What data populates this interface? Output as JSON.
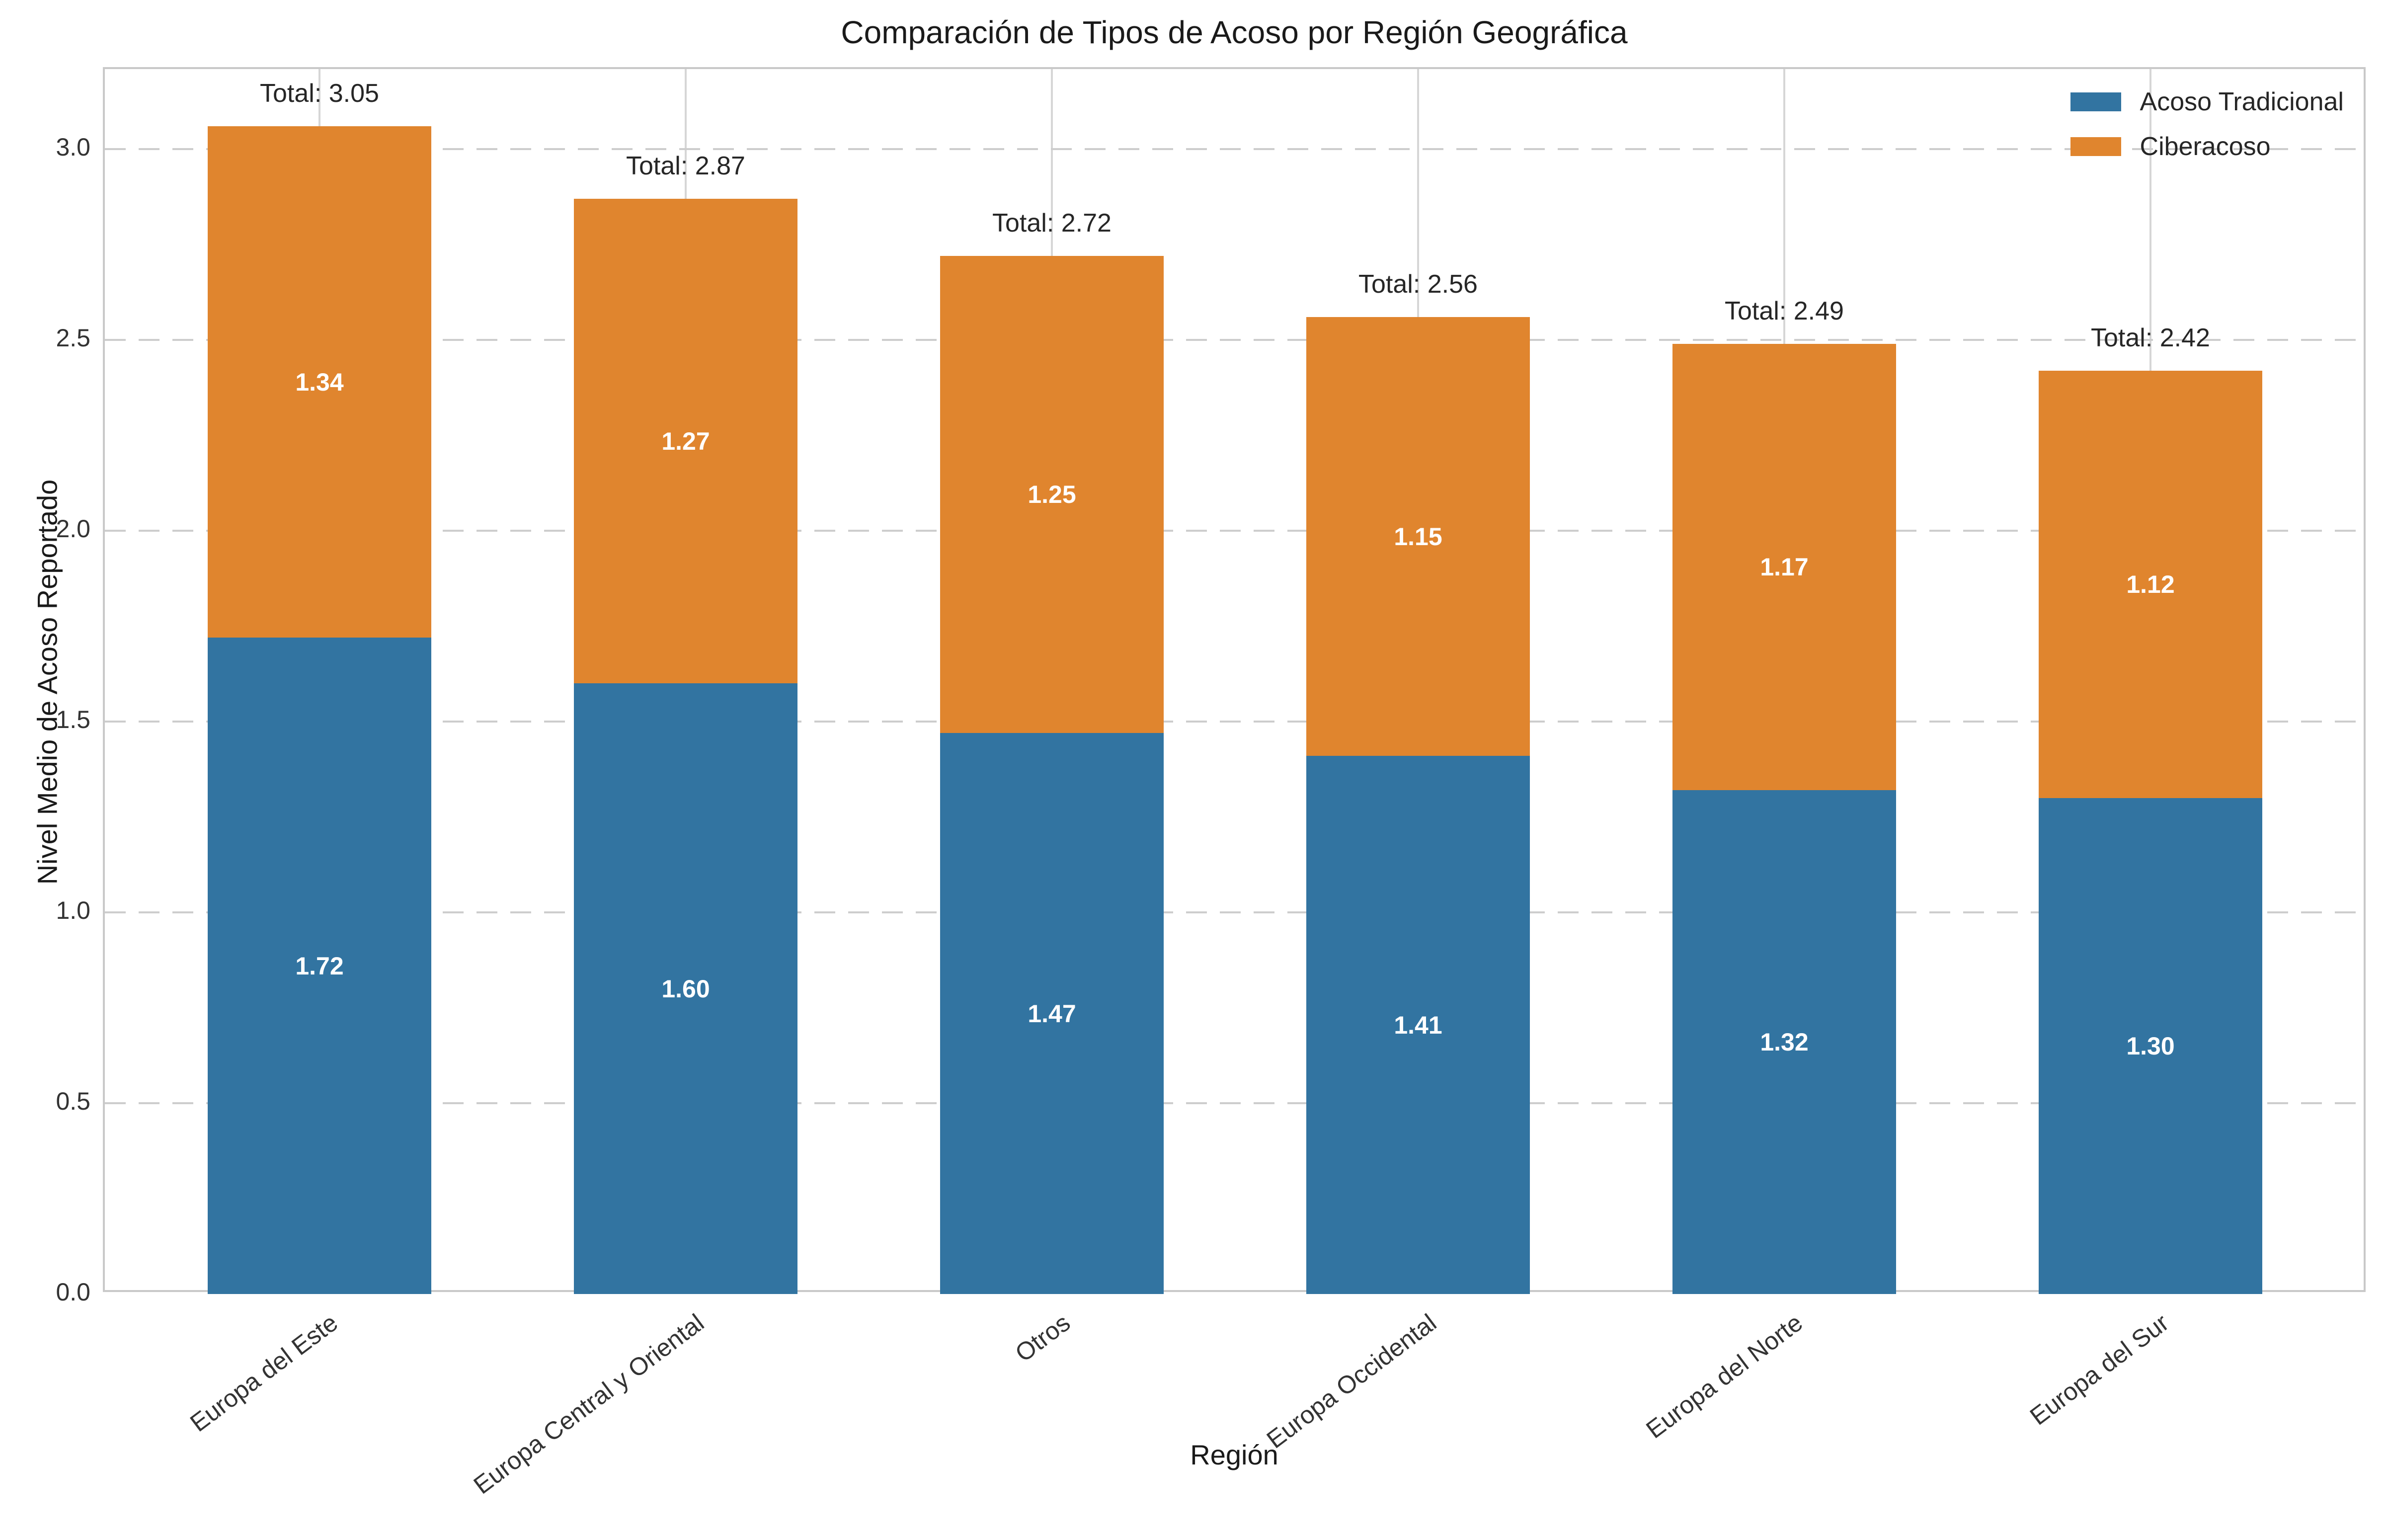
{
  "chart_data": {
    "type": "bar",
    "stacked": true,
    "title": "Comparación de Tipos de Acoso por Región Geográfica",
    "xlabel": "Región",
    "ylabel": "Nivel Medio de Acoso Reportado",
    "categories": [
      "Europa del Este",
      "Europa Central y Oriental",
      "Otros",
      "Europa Occidental",
      "Europa del Norte",
      "Europa del Sur"
    ],
    "series": [
      {
        "name": "Acoso Tradicional",
        "color": "#3274A1",
        "values": [
          1.72,
          1.6,
          1.47,
          1.41,
          1.32,
          1.3
        ]
      },
      {
        "name": "Ciberacoso",
        "color": "#E0852E",
        "values": [
          1.34,
          1.27,
          1.25,
          1.15,
          1.17,
          1.12
        ]
      }
    ],
    "segment_labels": [
      [
        "1.72",
        "1.60",
        "1.47",
        "1.41",
        "1.32",
        "1.30"
      ],
      [
        "1.34",
        "1.27",
        "1.25",
        "1.15",
        "1.17",
        "1.12"
      ]
    ],
    "totals": [
      3.05,
      2.87,
      2.72,
      2.56,
      2.49,
      2.42
    ],
    "total_labels": [
      "Total: 3.05",
      "Total: 2.87",
      "Total: 2.72",
      "Total: 2.56",
      "Total: 2.49",
      "Total: 2.42"
    ],
    "ylim": [
      0,
      3.21
    ],
    "yticks": [
      "0.0",
      "0.5",
      "1.0",
      "1.5",
      "2.0",
      "2.5",
      "3.0"
    ],
    "grid": {
      "horizontal": "dashed",
      "vertical": "solid",
      "color": "#d0d0d0"
    },
    "legend": {
      "position": "upper right"
    },
    "colors": {
      "blue": "#3274A1",
      "orange": "#E0852E"
    }
  }
}
